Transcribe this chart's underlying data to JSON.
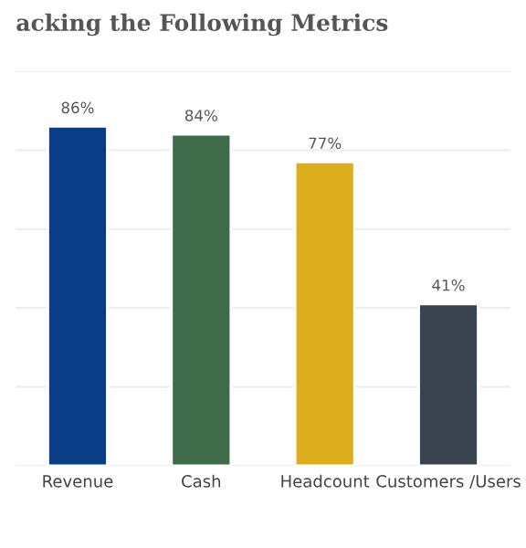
{
  "chart_data": {
    "type": "bar",
    "title": "acking the Following Metrics",
    "categories": [
      "Revenue",
      "Cash",
      "Headcount",
      "Customers /Users"
    ],
    "values": [
      86,
      84,
      77,
      41
    ],
    "colors": [
      "#0b3d86",
      "#3e6b4a",
      "#dcae1d",
      "#3a4350"
    ],
    "value_labels": [
      "86%",
      "84%",
      "77%",
      "41%"
    ],
    "ylim": [
      0,
      100
    ],
    "yticks": [
      {
        "value": 0,
        "label": null
      },
      {
        "value": 20,
        "label": null
      },
      {
        "value": 40,
        "label": null
      },
      {
        "value": 60,
        "label": null
      },
      {
        "value": 80,
        "label": null
      },
      {
        "value": 100,
        "label": null
      }
    ],
    "grid": "y",
    "tick_labels": "x"
  }
}
